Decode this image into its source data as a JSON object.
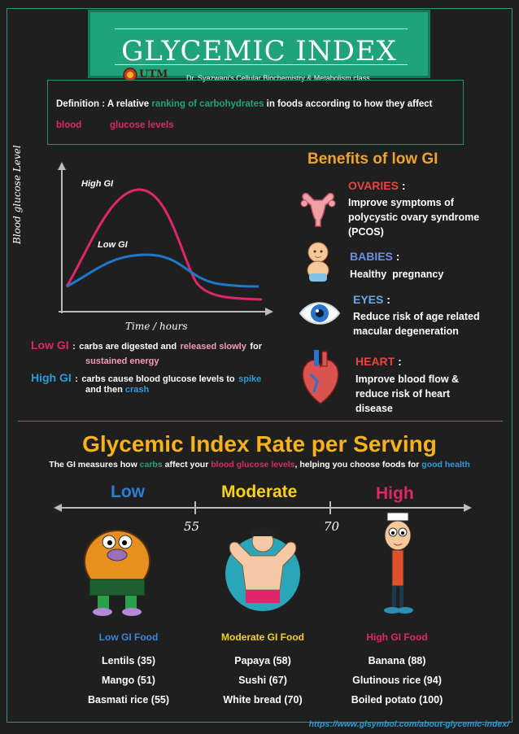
{
  "header": {
    "title": "GLYCEMIC INDEX",
    "logo_text": "UTM",
    "subtitle": "Dr. Syazwani's Cellular Biochemistry & Metabolism class"
  },
  "definition": {
    "label": "Definition :",
    "text_1": "A relative",
    "text_2": "ranking of carbohydrates",
    "text_3": "in foods according to how they affect",
    "text_4": "blood",
    "text_5": "glucose levels"
  },
  "graph": {
    "y_label": "Blood glucose Level",
    "x_label": "Time / hours",
    "high_label": "High GI",
    "low_label": "Low GI"
  },
  "gi_notes": {
    "low_label": "Low GI",
    "low_colon": ":",
    "low_text_1": "carbs are digested and",
    "low_text_2": "released slowly",
    "low_text_3": "for",
    "low_text_4": "sustained energy",
    "high_label": "High GI",
    "high_colon": ":",
    "high_text_1": "carbs cause blood glucose levels to",
    "high_text_2": "spike",
    "high_text_3": "and then",
    "high_text_4": "crash"
  },
  "benefits": {
    "title": "Benefits of low GI",
    "items": [
      {
        "head": "OVARIES",
        "colon": ":",
        "lines": [
          "Improve symptoms of",
          "polycystic ovary syndrome",
          "(PCOS)"
        ],
        "color": "#e8443f",
        "icon": "uterus-icon"
      },
      {
        "head": "BABIES",
        "colon": ":",
        "lines": [
          "Healthy  pregnancy"
        ],
        "color": "#6c8fe6",
        "icon": "baby-icon"
      },
      {
        "head": "EYES",
        "colon": ":",
        "lines": [
          "Reduce risk of age related",
          "macular degeneration"
        ],
        "color": "#6ca6e6",
        "icon": "eye-icon"
      },
      {
        "head": "HEART",
        "colon": ":",
        "lines": [
          "Improve blood flow &",
          "reduce risk of heart",
          "disease"
        ],
        "color": "#e8443f",
        "icon": "heart-icon"
      }
    ]
  },
  "rate": {
    "title": "Glycemic Index Rate per Serving",
    "sub_1": "The GI measures how",
    "sub_2": "carbs",
    "sub_3": "affect your",
    "sub_4": "blood glucose levels",
    "sub_5": ", helping you choose foods for",
    "sub_6": "good health",
    "low": "Low",
    "moderate": "Moderate",
    "high": "High",
    "tick_55": "55",
    "tick_70": "70"
  },
  "foods": {
    "low": {
      "head": "Low GI Food",
      "items": [
        "Lentils (35)",
        "Mango (51)",
        "Basmati rice (55)"
      ]
    },
    "moderate": {
      "head": "Moderate GI Food",
      "items": [
        "Papaya (58)",
        "Sushi (67)",
        "White bread (70)"
      ]
    },
    "high": {
      "head": "High GI Food",
      "items": [
        "Banana (88)",
        "Glutinous rice (94)",
        "Boiled potato (100)"
      ]
    }
  },
  "footer": {
    "url": "https://www.glsymbol.com/about-glycemic-index/"
  },
  "colors": {
    "accent_green": "#1fa37a",
    "pink": "#e0266b",
    "blue": "#2b9bd6",
    "yellow": "#f5b21b",
    "orange": "#f0a32a"
  }
}
